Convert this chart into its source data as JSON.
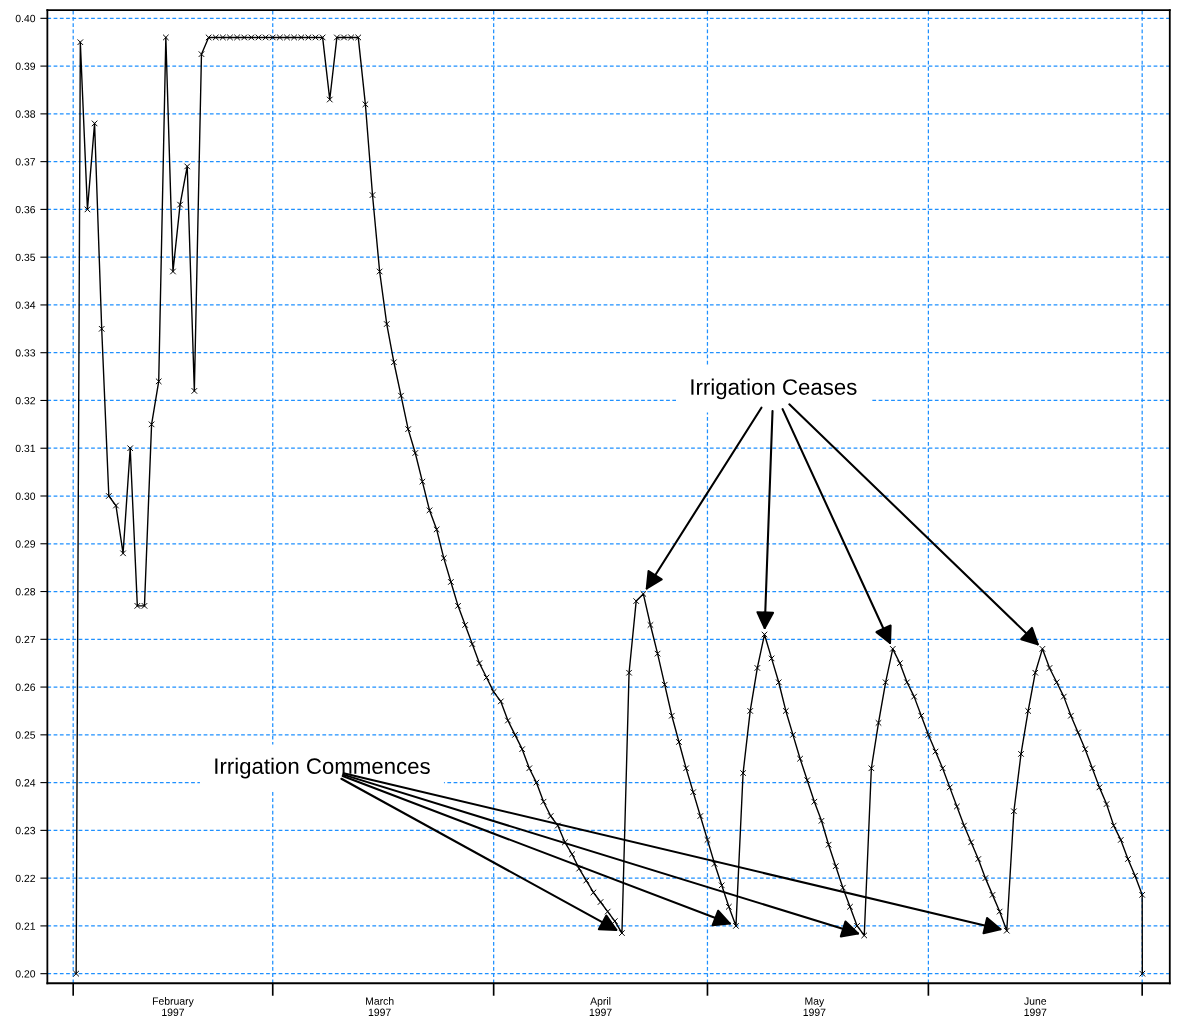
{
  "chart_data": {
    "type": "line",
    "x": [
      "1997-02-01T10:00",
      "1997-02-02",
      "1997-02-03",
      "1997-02-04",
      "1997-02-05",
      "1997-02-06",
      "1997-02-07",
      "1997-02-08",
      "1997-02-09",
      "1997-02-10",
      "1997-02-11",
      "1997-02-12",
      "1997-02-13",
      "1997-02-14",
      "1997-02-15",
      "1997-02-16",
      "1997-02-17",
      "1997-02-18",
      "1997-02-19",
      "1997-02-20",
      "1997-02-21",
      "1997-02-22",
      "1997-02-23",
      "1997-02-24",
      "1997-02-25",
      "1997-02-26",
      "1997-02-27",
      "1997-02-28",
      "1997-03-01",
      "1997-03-02",
      "1997-03-03",
      "1997-03-04",
      "1997-03-05",
      "1997-03-06",
      "1997-03-07",
      "1997-03-08",
      "1997-03-09",
      "1997-03-10",
      "1997-03-11",
      "1997-03-12",
      "1997-03-13",
      "1997-03-14",
      "1997-03-15",
      "1997-03-16",
      "1997-03-17",
      "1997-03-18",
      "1997-03-19",
      "1997-03-20",
      "1997-03-21",
      "1997-03-22",
      "1997-03-23",
      "1997-03-24",
      "1997-03-25",
      "1997-03-26",
      "1997-03-27",
      "1997-03-28",
      "1997-03-29",
      "1997-03-30",
      "1997-03-31",
      "1997-04-01",
      "1997-04-02",
      "1997-04-03",
      "1997-04-04",
      "1997-04-05",
      "1997-04-06",
      "1997-04-07",
      "1997-04-08",
      "1997-04-09",
      "1997-04-10",
      "1997-04-11",
      "1997-04-12",
      "1997-04-13",
      "1997-04-14",
      "1997-04-15",
      "1997-04-16",
      "1997-04-17",
      "1997-04-18",
      "1997-04-19",
      "1997-04-20",
      "1997-04-21",
      "1997-04-22",
      "1997-04-23",
      "1997-04-24",
      "1997-04-25",
      "1997-04-26",
      "1997-04-27",
      "1997-04-28",
      "1997-04-29",
      "1997-04-30",
      "1997-05-01",
      "1997-05-02",
      "1997-05-03",
      "1997-05-04",
      "1997-05-05",
      "1997-05-06",
      "1997-05-07",
      "1997-05-08",
      "1997-05-09",
      "1997-05-10",
      "1997-05-11",
      "1997-05-12",
      "1997-05-13",
      "1997-05-14",
      "1997-05-15",
      "1997-05-16",
      "1997-05-17",
      "1997-05-18",
      "1997-05-19",
      "1997-05-20",
      "1997-05-21",
      "1997-05-22",
      "1997-05-23",
      "1997-05-24",
      "1997-05-25",
      "1997-05-26",
      "1997-05-27",
      "1997-05-28",
      "1997-05-29",
      "1997-05-30",
      "1997-05-31",
      "1997-06-01",
      "1997-06-02",
      "1997-06-03",
      "1997-06-04",
      "1997-06-05",
      "1997-06-06",
      "1997-06-07",
      "1997-06-08",
      "1997-06-09",
      "1997-06-10",
      "1997-06-11",
      "1997-06-12",
      "1997-06-13",
      "1997-06-14",
      "1997-06-15",
      "1997-06-16",
      "1997-06-17",
      "1997-06-18",
      "1997-06-19",
      "1997-06-20",
      "1997-06-21",
      "1997-06-22",
      "1997-06-23",
      "1997-06-24",
      "1997-06-25",
      "1997-06-26",
      "1997-06-27",
      "1997-06-28",
      "1997-06-29",
      "1997-06-30",
      "1997-07-01",
      "1997-07-01T00:30"
    ],
    "series": [
      {
        "color": "#000000",
        "values": [
          0.2,
          0.395,
          0.36,
          0.378,
          0.335,
          0.3,
          0.298,
          0.288,
          0.31,
          0.277,
          0.277,
          0.315,
          0.324,
          0.396,
          0.347,
          0.361,
          0.369,
          0.322,
          0.3925,
          0.396,
          0.396,
          0.396,
          0.396,
          0.396,
          0.396,
          0.396,
          0.396,
          0.396,
          0.396,
          0.396,
          0.396,
          0.396,
          0.396,
          0.396,
          0.396,
          0.396,
          0.383,
          0.396,
          0.396,
          0.396,
          0.396,
          0.382,
          0.363,
          0.347,
          0.336,
          0.328,
          0.321,
          0.314,
          0.309,
          0.303,
          0.297,
          0.293,
          0.287,
          0.282,
          0.277,
          0.273,
          0.269,
          0.265,
          0.262,
          0.259,
          0.257,
          0.253,
          0.25,
          0.247,
          0.243,
          0.24,
          0.236,
          0.233,
          0.231,
          0.2275,
          0.225,
          0.222,
          0.2195,
          0.217,
          0.215,
          0.213,
          0.211,
          0.2085,
          0.263,
          0.278,
          0.2795,
          0.273,
          0.267,
          0.2605,
          0.254,
          0.2485,
          0.243,
          0.238,
          0.233,
          0.228,
          0.223,
          0.2185,
          0.214,
          0.21,
          0.242,
          0.255,
          0.264,
          0.271,
          0.266,
          0.261,
          0.255,
          0.25,
          0.245,
          0.2405,
          0.236,
          0.232,
          0.227,
          0.2225,
          0.218,
          0.214,
          0.21,
          0.208,
          0.243,
          0.2525,
          0.261,
          0.268,
          0.265,
          0.261,
          0.258,
          0.254,
          0.25,
          0.2465,
          0.243,
          0.239,
          0.235,
          0.231,
          0.2275,
          0.224,
          0.22,
          0.2165,
          0.213,
          0.209,
          0.234,
          0.246,
          0.255,
          0.263,
          0.268,
          0.264,
          0.261,
          0.258,
          0.254,
          0.2505,
          0.247,
          0.243,
          0.239,
          0.2355,
          0.231,
          0.228,
          0.224,
          0.2205,
          0.2165,
          0.2
        ]
      }
    ],
    "xlim": [
      "1997-01-28T09:00",
      "1997-07-04T21:00"
    ],
    "xticks": [
      {
        "value": "1997-02-01",
        "label": null
      },
      {
        "value": "1997-03-01",
        "label": null
      },
      {
        "value": "1997-04-01",
        "label": null
      },
      {
        "value": "1997-05-01",
        "label": null
      },
      {
        "value": "1997-06-01",
        "label": null
      },
      {
        "value": "1997-07-01",
        "label": null
      },
      {
        "value": "1997-02-15",
        "label": "February\n1997"
      },
      {
        "value": "1997-03-16",
        "label": "March\n1997"
      },
      {
        "value": "1997-04-16",
        "label": "April\n1997"
      },
      {
        "value": "1997-05-16",
        "label": "May\n1997"
      },
      {
        "value": "1997-06-16",
        "label": "June\n1997"
      }
    ],
    "ylim": [
      0.198,
      0.4017
    ],
    "yticks": [
      {
        "value": 0.2,
        "label": "0.20"
      },
      {
        "value": 0.21,
        "label": "0.21"
      },
      {
        "value": 0.22,
        "label": "0.22"
      },
      {
        "value": 0.23,
        "label": "0.23"
      },
      {
        "value": 0.24,
        "label": "0.24"
      },
      {
        "value": 0.25,
        "label": "0.25"
      },
      {
        "value": 0.26,
        "label": "0.26"
      },
      {
        "value": 0.27,
        "label": "0.27"
      },
      {
        "value": 0.28,
        "label": "0.28"
      },
      {
        "value": 0.29,
        "label": "0.29"
      },
      {
        "value": 0.3,
        "label": "0.30"
      },
      {
        "value": 0.31,
        "label": "0.31"
      },
      {
        "value": 0.32,
        "label": "0.32"
      },
      {
        "value": 0.33,
        "label": "0.33"
      },
      {
        "value": 0.34,
        "label": "0.34"
      },
      {
        "value": 0.35,
        "label": "0.35"
      },
      {
        "value": 0.36,
        "label": "0.36"
      },
      {
        "value": 0.37,
        "label": "0.37"
      },
      {
        "value": 0.38,
        "label": "0.38"
      },
      {
        "value": 0.39,
        "label": "0.39"
      },
      {
        "value": 0.4,
        "label": "0.40"
      }
    ],
    "grid": true,
    "marker": "cross",
    "line_style": "solid",
    "annotations": [
      {
        "text": "Irrigation Ceases",
        "x": "1997-04-22",
        "y": 0.2795
      },
      {
        "text": "Irrigation Commences",
        "x": "1997-04-19",
        "y": 0.2085
      }
    ]
  }
}
